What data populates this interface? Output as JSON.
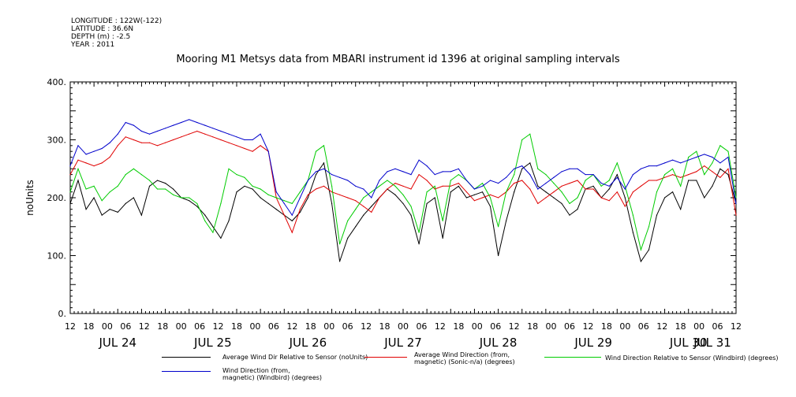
{
  "header": {
    "longitude": "LONGITUDE : 122W(-122)",
    "latitude": "LATITUDE : 36.6N",
    "depth": "DEPTH (m) : -2.5",
    "year": "YEAR : 2011"
  },
  "chart_data": {
    "type": "line",
    "title": "Mooring M1 Metsys data from MBARI instrument id 1396 at original sampling intervals",
    "ylabel": "noUnits",
    "xlabel": "",
    "ylim": [
      0,
      400
    ],
    "y_ticks": [
      "0.",
      "100.",
      "200.",
      "300.",
      "400."
    ],
    "x_hour_ticks": [
      "12",
      "18",
      "00",
      "06",
      "12",
      "18",
      "00",
      "06",
      "12",
      "18",
      "00",
      "06",
      "12",
      "18",
      "00",
      "06",
      "12",
      "18",
      "00",
      "06",
      "12",
      "18",
      "00",
      "06",
      "12",
      "18",
      "00",
      "06",
      "12",
      "18",
      "00",
      "06",
      "12",
      "18",
      "00",
      "06",
      "12"
    ],
    "x_day_labels": [
      "JUL 24",
      "JUL 25",
      "JUL 26",
      "JUL 27",
      "JUL 28",
      "JUL 29",
      "JUL 30",
      "JUL 31"
    ],
    "x_range_hours": [
      0,
      168
    ],
    "grid": false,
    "series": [
      {
        "name": "Average Wind Dir Relative to Sensor (noUnits)",
        "color": "#000000",
        "x": [
          0,
          2,
          4,
          6,
          8,
          10,
          12,
          14,
          16,
          18,
          20,
          22,
          24,
          26,
          28,
          30,
          32,
          34,
          36,
          38,
          40,
          42,
          44,
          46,
          48,
          50,
          52,
          54,
          56,
          58,
          60,
          62,
          64,
          66,
          68,
          70,
          72,
          74,
          76,
          78,
          80,
          82,
          84,
          86,
          88,
          90,
          92,
          94,
          96,
          98,
          100,
          102,
          104,
          106,
          108,
          110,
          112,
          114,
          116,
          118,
          120,
          122,
          124,
          126,
          128,
          130,
          132,
          134,
          136,
          138,
          140,
          142,
          144,
          146,
          148,
          150,
          152,
          154,
          156,
          158,
          160,
          162,
          164,
          166,
          168
        ],
        "y": [
          190,
          230,
          180,
          200,
          170,
          180,
          175,
          190,
          200,
          170,
          220,
          230,
          225,
          215,
          200,
          195,
          185,
          170,
          150,
          130,
          160,
          210,
          220,
          215,
          200,
          190,
          180,
          170,
          160,
          175,
          200,
          240,
          260,
          190,
          90,
          130,
          150,
          170,
          185,
          200,
          215,
          205,
          190,
          170,
          120,
          190,
          200,
          130,
          210,
          220,
          200,
          205,
          210,
          185,
          100,
          160,
          210,
          250,
          260,
          220,
          210,
          200,
          190,
          170,
          180,
          215,
          220,
          200,
          215,
          240,
          200,
          140,
          90,
          110,
          170,
          200,
          210,
          180,
          230,
          230,
          200,
          220,
          250,
          240,
          190
        ]
      },
      {
        "name": "Average Wind Direction (from, magnetic) (Sonic-n/a) (degrees)",
        "color": "#e00000",
        "x": [
          0,
          2,
          4,
          6,
          8,
          10,
          12,
          14,
          16,
          18,
          20,
          22,
          24,
          26,
          28,
          30,
          32,
          34,
          36,
          38,
          40,
          42,
          44,
          46,
          48,
          50,
          52,
          54,
          56,
          58,
          60,
          62,
          64,
          66,
          68,
          70,
          72,
          74,
          76,
          78,
          80,
          82,
          84,
          86,
          88,
          90,
          92,
          94,
          96,
          98,
          100,
          102,
          104,
          106,
          108,
          110,
          112,
          114,
          116,
          118,
          120,
          122,
          124,
          126,
          128,
          130,
          132,
          134,
          136,
          138,
          140,
          142,
          144,
          146,
          148,
          150,
          152,
          154,
          156,
          158,
          160,
          162,
          164,
          166,
          168
        ],
        "y": [
          240,
          265,
          260,
          255,
          260,
          270,
          290,
          305,
          300,
          295,
          295,
          290,
          295,
          300,
          305,
          310,
          315,
          310,
          305,
          300,
          295,
          290,
          285,
          280,
          290,
          280,
          200,
          170,
          140,
          180,
          205,
          215,
          220,
          210,
          205,
          200,
          195,
          185,
          175,
          200,
          215,
          225,
          220,
          215,
          240,
          230,
          215,
          220,
          220,
          225,
          210,
          195,
          200,
          205,
          200,
          210,
          225,
          230,
          215,
          190,
          200,
          210,
          220,
          225,
          230,
          215,
          215,
          200,
          195,
          210,
          185,
          210,
          220,
          230,
          230,
          235,
          240,
          235,
          240,
          245,
          255,
          245,
          235,
          250,
          170
        ]
      },
      {
        "name": "Wind Direction Relative to Sensor (Windbird) (degrees)",
        "color": "#00cc00",
        "x": [
          0,
          2,
          4,
          6,
          8,
          10,
          12,
          14,
          16,
          18,
          20,
          22,
          24,
          26,
          28,
          30,
          32,
          34,
          36,
          38,
          40,
          42,
          44,
          46,
          48,
          50,
          52,
          54,
          56,
          58,
          60,
          62,
          64,
          66,
          68,
          70,
          72,
          74,
          76,
          78,
          80,
          82,
          84,
          86,
          88,
          90,
          92,
          94,
          96,
          98,
          100,
          102,
          104,
          106,
          108,
          110,
          112,
          114,
          116,
          118,
          120,
          122,
          124,
          126,
          128,
          130,
          132,
          134,
          136,
          138,
          140,
          142,
          144,
          146,
          148,
          150,
          152,
          154,
          156,
          158,
          160,
          162,
          164,
          166,
          168
        ],
        "y": [
          210,
          250,
          215,
          220,
          195,
          210,
          220,
          240,
          250,
          240,
          230,
          215,
          215,
          205,
          200,
          200,
          190,
          160,
          140,
          190,
          250,
          240,
          235,
          220,
          215,
          205,
          200,
          195,
          190,
          210,
          230,
          280,
          290,
          220,
          120,
          160,
          180,
          200,
          210,
          220,
          230,
          220,
          205,
          185,
          140,
          210,
          220,
          160,
          230,
          240,
          230,
          215,
          225,
          200,
          150,
          210,
          240,
          300,
          310,
          250,
          240,
          225,
          210,
          190,
          200,
          230,
          240,
          220,
          230,
          260,
          220,
          170,
          110,
          150,
          210,
          240,
          250,
          220,
          270,
          280,
          240,
          260,
          290,
          280,
          200
        ]
      },
      {
        "name": "Wind Direction (from, magnetic) (Windbird) (degrees)",
        "color": "#0000cc",
        "x": [
          0,
          2,
          4,
          6,
          8,
          10,
          12,
          14,
          16,
          18,
          20,
          22,
          24,
          26,
          28,
          30,
          32,
          34,
          36,
          38,
          40,
          42,
          44,
          46,
          48,
          50,
          52,
          54,
          56,
          58,
          60,
          62,
          64,
          66,
          68,
          70,
          72,
          74,
          76,
          78,
          80,
          82,
          84,
          86,
          88,
          90,
          92,
          94,
          96,
          98,
          100,
          102,
          104,
          106,
          108,
          110,
          112,
          114,
          116,
          118,
          120,
          122,
          124,
          126,
          128,
          130,
          132,
          134,
          136,
          138,
          140,
          142,
          144,
          146,
          148,
          150,
          152,
          154,
          156,
          158,
          160,
          162,
          164,
          166,
          168
        ],
        "y": [
          255,
          290,
          275,
          280,
          285,
          295,
          310,
          330,
          325,
          315,
          310,
          315,
          320,
          325,
          330,
          335,
          330,
          325,
          320,
          315,
          310,
          305,
          300,
          300,
          310,
          280,
          210,
          190,
          170,
          200,
          230,
          245,
          250,
          240,
          235,
          230,
          220,
          215,
          200,
          230,
          245,
          250,
          245,
          240,
          265,
          255,
          240,
          245,
          245,
          250,
          230,
          215,
          220,
          230,
          225,
          235,
          250,
          255,
          240,
          215,
          225,
          235,
          245,
          250,
          250,
          240,
          240,
          225,
          220,
          235,
          215,
          240,
          250,
          255,
          255,
          260,
          265,
          260,
          265,
          270,
          275,
          270,
          260,
          270,
          190
        ]
      }
    ]
  },
  "legend": {
    "black": "Average Wind Dir Relative to Sensor (noUnits)",
    "red": "Average Wind Direction (from,\nmagnetic) (Sonic-n/a) (degrees)",
    "green": "Wind Direction Relative to Sensor (Windbird) (degrees)",
    "blue": "Wind Direction (from,\nmagnetic) (Windbird) (degrees)"
  }
}
